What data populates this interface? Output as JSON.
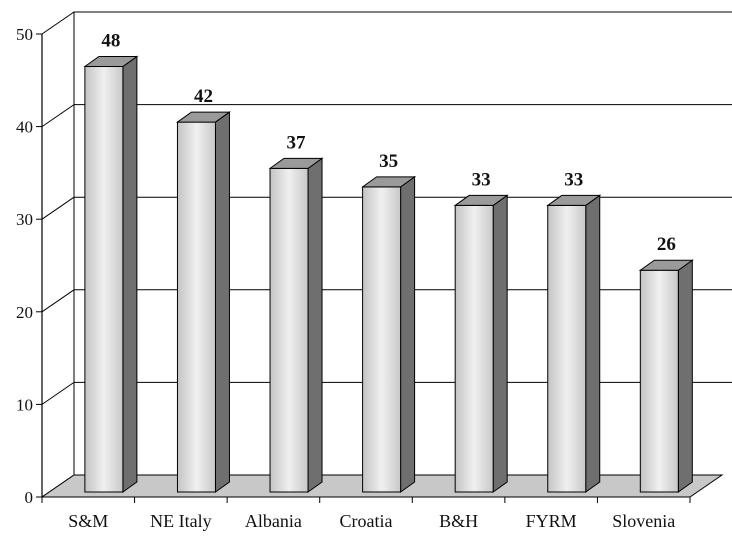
{
  "chart_data": {
    "type": "bar",
    "categories": [
      "S&M",
      "NE Italy",
      "Albania",
      "Croatia",
      "B&H",
      "FYRM",
      "Slovenia"
    ],
    "values": [
      48,
      42,
      37,
      35,
      33,
      33,
      26
    ],
    "title": "",
    "xlabel": "",
    "ylabel": "",
    "ylim": [
      0,
      50
    ],
    "yticks": [
      0,
      10,
      20,
      30,
      40,
      50
    ],
    "grid": true,
    "style": "3d-cylinder-bars",
    "data_labels": true,
    "colors": {
      "bar_front": "#d6d6d6",
      "bar_side": "#6f6f6f",
      "bar_top": "#9a9a9a",
      "floor": "#c8c8c8",
      "grid": "#000000"
    }
  }
}
